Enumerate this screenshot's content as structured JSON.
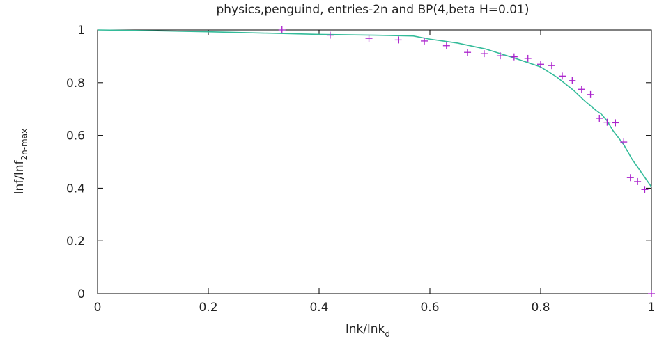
{
  "chart_data": {
    "type": "scatter",
    "title": "physics,penguind, entries-2n and BP(4,beta H=0.01)",
    "xlabel": {
      "main": "lnk/lnk",
      "sub": "d"
    },
    "ylabel": {
      "main": "lnf/lnf",
      "sub": "2n-max"
    },
    "xlim": [
      0,
      1
    ],
    "ylim": [
      0,
      1
    ],
    "x_ticks": [
      "0",
      "0.2",
      "0.4",
      "0.6",
      "0.8",
      "1"
    ],
    "y_ticks": [
      "0",
      "0.2",
      "0.4",
      "0.6",
      "0.8",
      "1"
    ],
    "grid": false,
    "legend": "none",
    "series": [
      {
        "kind": "line",
        "color": "#33bb99",
        "points": [
          [
            0.0,
            1.0
          ],
          [
            0.1,
            0.997
          ],
          [
            0.2,
            0.993
          ],
          [
            0.3,
            0.988
          ],
          [
            0.4,
            0.983
          ],
          [
            0.5,
            0.98
          ],
          [
            0.57,
            0.977
          ],
          [
            0.6,
            0.965
          ],
          [
            0.65,
            0.95
          ],
          [
            0.7,
            0.928
          ],
          [
            0.75,
            0.895
          ],
          [
            0.8,
            0.86
          ],
          [
            0.83,
            0.82
          ],
          [
            0.86,
            0.77
          ],
          [
            0.88,
            0.73
          ],
          [
            0.9,
            0.695
          ],
          [
            0.91,
            0.68
          ],
          [
            0.92,
            0.655
          ],
          [
            0.93,
            0.62
          ],
          [
            0.95,
            0.565
          ],
          [
            0.965,
            0.51
          ],
          [
            0.98,
            0.465
          ],
          [
            1.0,
            0.405
          ]
        ]
      },
      {
        "kind": "points",
        "color": "#aa22cc",
        "points": [
          [
            0.333,
            1.0
          ],
          [
            0.42,
            0.98
          ],
          [
            0.49,
            0.968
          ],
          [
            0.543,
            0.962
          ],
          [
            0.59,
            0.958
          ],
          [
            0.63,
            0.94
          ],
          [
            0.668,
            0.915
          ],
          [
            0.698,
            0.91
          ],
          [
            0.727,
            0.902
          ],
          [
            0.752,
            0.898
          ],
          [
            0.777,
            0.892
          ],
          [
            0.8,
            0.87
          ],
          [
            0.82,
            0.865
          ],
          [
            0.839,
            0.825
          ],
          [
            0.857,
            0.808
          ],
          [
            0.874,
            0.775
          ],
          [
            0.89,
            0.755
          ],
          [
            0.906,
            0.665
          ],
          [
            0.92,
            0.65
          ],
          [
            0.935,
            0.648
          ],
          [
            0.95,
            0.575
          ],
          [
            0.962,
            0.44
          ],
          [
            0.975,
            0.425
          ],
          [
            0.988,
            0.395
          ],
          [
            1.0,
            0.0
          ]
        ]
      }
    ]
  }
}
